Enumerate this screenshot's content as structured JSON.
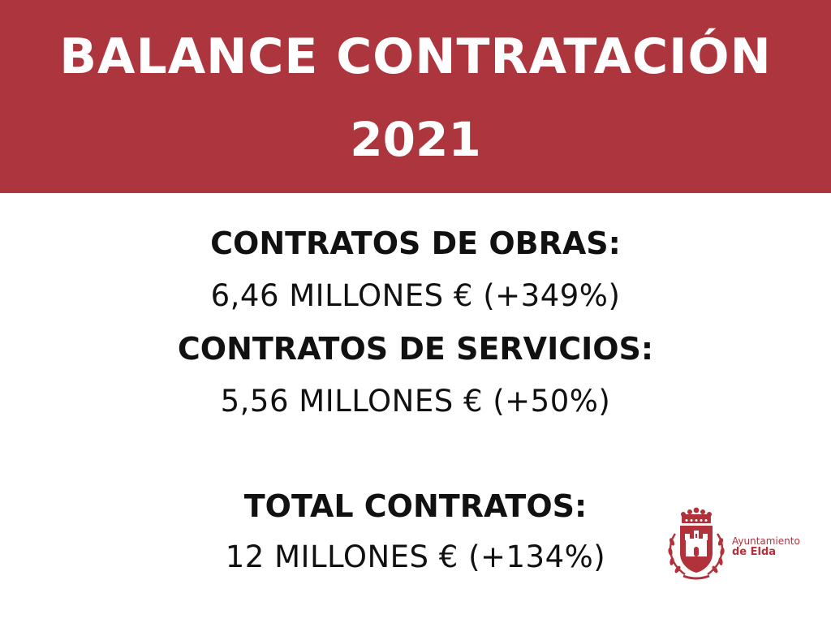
{
  "header": {
    "title_line1": "BALANCE CONTRATACIÓN",
    "title_line2": "2021",
    "background_color": "#ad363e"
  },
  "stats": [
    {
      "label": "CONTRATOS DE OBRAS:",
      "value": "6,46 MILLONES € (+349%)"
    },
    {
      "label": "CONTRATOS DE SERVICIOS:",
      "value": "5,56 MILLONES € (+50%)"
    },
    {
      "label": "TOTAL CONTRATOS:",
      "value": "12 MILLONES € (+134%)"
    }
  ],
  "logo": {
    "icon": "coat-of-arms-icon",
    "line1": "Ayuntamiento",
    "line2": "de Elda",
    "color": "#b2323b"
  }
}
